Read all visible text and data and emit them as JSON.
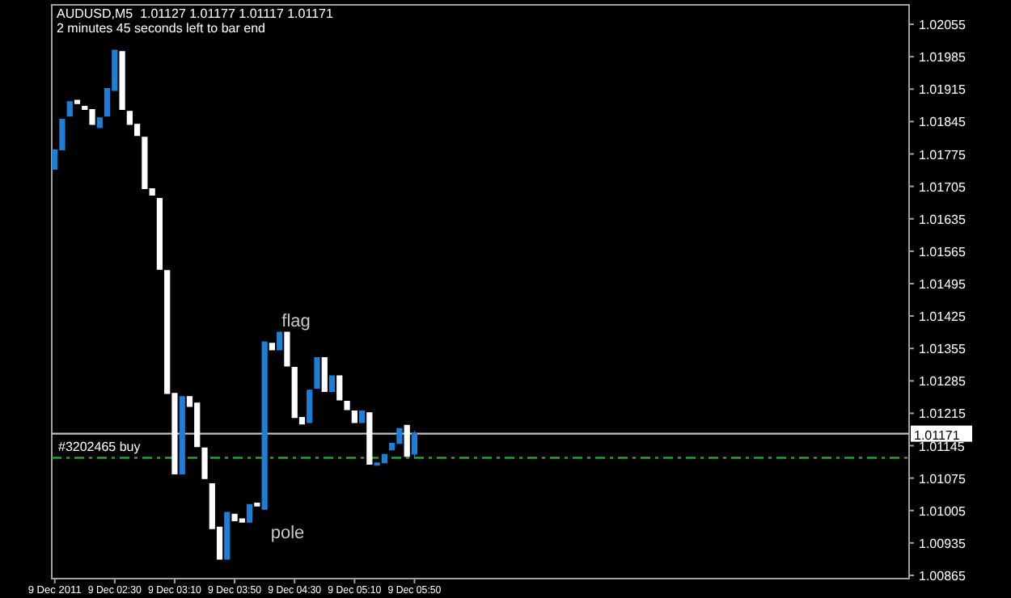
{
  "chart_data": {
    "type": "candlestick",
    "title": "AUDUSD,M5  1.01127 1.01177 1.01117 1.01171",
    "subtitle": "2 minutes 45 seconds left to bar end",
    "x": [
      "2011-12-09T01:50",
      "2011-12-09T01:55",
      "2011-12-09T02:00",
      "2011-12-09T02:05",
      "2011-12-09T02:10",
      "2011-12-09T02:15",
      "2011-12-09T02:20",
      "2011-12-09T02:25",
      "2011-12-09T02:30",
      "2011-12-09T02:35",
      "2011-12-09T02:40",
      "2011-12-09T02:45",
      "2011-12-09T02:50",
      "2011-12-09T02:55",
      "2011-12-09T03:00",
      "2011-12-09T03:05",
      "2011-12-09T03:10",
      "2011-12-09T03:15",
      "2011-12-09T03:20",
      "2011-12-09T03:25",
      "2011-12-09T03:30",
      "2011-12-09T03:35",
      "2011-12-09T03:40",
      "2011-12-09T03:45",
      "2011-12-09T03:50",
      "2011-12-09T03:55",
      "2011-12-09T04:00",
      "2011-12-09T04:05",
      "2011-12-09T04:10",
      "2011-12-09T04:15",
      "2011-12-09T04:20",
      "2011-12-09T04:25",
      "2011-12-09T04:30",
      "2011-12-09T04:35",
      "2011-12-09T04:40",
      "2011-12-09T04:45",
      "2011-12-09T04:50",
      "2011-12-09T04:55",
      "2011-12-09T05:00",
      "2011-12-09T05:05",
      "2011-12-09T05:10",
      "2011-12-09T05:15",
      "2011-12-09T05:20",
      "2011-12-09T05:25",
      "2011-12-09T05:30",
      "2011-12-09T05:35",
      "2011-12-09T05:40",
      "2011-12-09T05:45",
      "2011-12-09T05:50"
    ],
    "ohlc": [
      [
        1.01742,
        1.01784,
        1.01742,
        1.01784
      ],
      [
        1.01784,
        1.0185,
        1.01784,
        1.0185
      ],
      [
        1.01857,
        1.01888,
        1.01857,
        1.01888
      ],
      [
        1.01891,
        1.01891,
        1.01884,
        1.01884
      ],
      [
        1.01878,
        1.01878,
        1.01871,
        1.01871
      ],
      [
        1.01871,
        1.01871,
        1.01839,
        1.01839
      ],
      [
        1.01832,
        1.01853,
        1.01832,
        1.01853
      ],
      [
        1.01857,
        1.01916,
        1.01857,
        1.01916
      ],
      [
        1.01912,
        1.01999,
        1.01912,
        1.01999
      ],
      [
        1.01996,
        1.01996,
        1.01871,
        1.01871
      ],
      [
        1.01867,
        1.01867,
        1.01839,
        1.01839
      ],
      [
        1.01839,
        1.01839,
        1.01815,
        1.01815
      ],
      [
        1.01811,
        1.01811,
        1.017,
        1.017
      ],
      [
        1.017,
        1.017,
        1.01686,
        1.01686
      ],
      [
        1.01679,
        1.01679,
        1.01526,
        1.01526
      ],
      [
        1.01523,
        1.01523,
        1.01258,
        1.01258
      ],
      [
        1.01258,
        1.01258,
        1.01084,
        1.01084
      ],
      [
        1.01084,
        1.01251,
        1.01084,
        1.01251
      ],
      [
        1.01251,
        1.01251,
        1.0123,
        1.0123
      ],
      [
        1.01237,
        1.01237,
        1.01143,
        1.01143
      ],
      [
        1.0114,
        1.0114,
        1.01074,
        1.01074
      ],
      [
        1.01063,
        1.01063,
        1.00966,
        1.00966
      ],
      [
        1.00969,
        1.00969,
        1.009,
        1.009
      ],
      [
        1.009,
        1.01001,
        1.009,
        1.01001
      ],
      [
        1.00997,
        1.00997,
        1.00983,
        1.00983
      ],
      [
        1.00987,
        1.00987,
        1.0098,
        1.0098
      ],
      [
        1.0098,
        1.01018,
        1.0098,
        1.01018
      ],
      [
        1.01021,
        1.01021,
        1.01015,
        1.01015
      ],
      [
        1.01008,
        1.01369,
        1.01008,
        1.01369
      ],
      [
        1.01366,
        1.01366,
        1.01352,
        1.01352
      ],
      [
        1.01352,
        1.0139,
        1.01352,
        1.0139
      ],
      [
        1.0139,
        1.0139,
        1.01317,
        1.01317
      ],
      [
        1.01314,
        1.01314,
        1.01206,
        1.01206
      ],
      [
        1.01206,
        1.01206,
        1.01192,
        1.01192
      ],
      [
        1.01195,
        1.01265,
        1.01195,
        1.01265
      ],
      [
        1.01269,
        1.01335,
        1.01269,
        1.01335
      ],
      [
        1.01335,
        1.01335,
        1.01262,
        1.01262
      ],
      [
        1.01262,
        1.01296,
        1.01262,
        1.01296
      ],
      [
        1.01296,
        1.01296,
        1.01244,
        1.01244
      ],
      [
        1.01241,
        1.01241,
        1.01223,
        1.01223
      ],
      [
        1.0122,
        1.0122,
        1.01195,
        1.01195
      ],
      [
        1.01195,
        1.0122,
        1.01195,
        1.0122
      ],
      [
        1.01216,
        1.01216,
        1.01105,
        1.01105
      ],
      [
        1.01105,
        1.01108,
        1.01105,
        1.01108
      ],
      [
        1.01108,
        1.01126,
        1.01108,
        1.01126
      ],
      [
        1.01136,
        1.0115,
        1.01136,
        1.0115
      ],
      [
        1.0115,
        1.01182,
        1.0115,
        1.01182
      ],
      [
        1.01189,
        1.01189,
        1.01122,
        1.01122
      ],
      [
        1.01127,
        1.01177,
        1.01117,
        1.01171
      ]
    ],
    "colors": [
      "#1e7fd6",
      "#1e7fd6",
      "#1e7fd6",
      "#ffffff",
      "#ffffff",
      "#ffffff",
      "#1e7fd6",
      "#1e7fd6",
      "#1e7fd6",
      "#ffffff",
      "#ffffff",
      "#ffffff",
      "#ffffff",
      "#ffffff",
      "#ffffff",
      "#ffffff",
      "#ffffff",
      "#1e7fd6",
      "#ffffff",
      "#ffffff",
      "#ffffff",
      "#ffffff",
      "#ffffff",
      "#1e7fd6",
      "#ffffff",
      "#ffffff",
      "#1e7fd6",
      "#ffffff",
      "#1e7fd6",
      "#ffffff",
      "#1e7fd6",
      "#ffffff",
      "#ffffff",
      "#ffffff",
      "#1e7fd6",
      "#1e7fd6",
      "#ffffff",
      "#1e7fd6",
      "#ffffff",
      "#ffffff",
      "#ffffff",
      "#1e7fd6",
      "#ffffff",
      "#1e7fd6",
      "#1e7fd6",
      "#1e7fd6",
      "#1e7fd6",
      "#ffffff",
      "#1e7fd6"
    ],
    "xlim": [
      "2011-12-09T01:48",
      "2011-12-09T11:20"
    ],
    "xticks": [
      {
        "value": "2011-12-09T01:50",
        "label": "9 Dec 2011"
      },
      {
        "value": "2011-12-09T02:30",
        "label": "9 Dec 02:30"
      },
      {
        "value": "2011-12-09T03:10",
        "label": "9 Dec 03:10"
      },
      {
        "value": "2011-12-09T03:50",
        "label": "9 Dec 03:50"
      },
      {
        "value": "2011-12-09T04:30",
        "label": "9 Dec 04:30"
      },
      {
        "value": "2011-12-09T05:10",
        "label": "9 Dec 05:10"
      },
      {
        "value": "2011-12-09T05:50",
        "label": "9 Dec 05:50"
      }
    ],
    "ylim": [
      1.00858,
      1.02097
    ],
    "yticks": [
      1.02055,
      1.01985,
      1.01915,
      1.01845,
      1.01775,
      1.01705,
      1.01635,
      1.01565,
      1.01495,
      1.01425,
      1.01355,
      1.01285,
      1.01215,
      1.01145,
      1.01075,
      1.01005,
      1.00935,
      1.00865
    ],
    "ref_lines": [
      {
        "axis": "y",
        "value": 1.01171,
        "label": "1.01171",
        "color": "#c0c0c0",
        "line_style": "solid"
      },
      {
        "axis": "y",
        "value": 1.01119,
        "label": "#3202465 buy",
        "color": "#22a822",
        "line_style": "dashed"
      }
    ],
    "annotations": [
      "flag",
      "pole"
    ]
  }
}
